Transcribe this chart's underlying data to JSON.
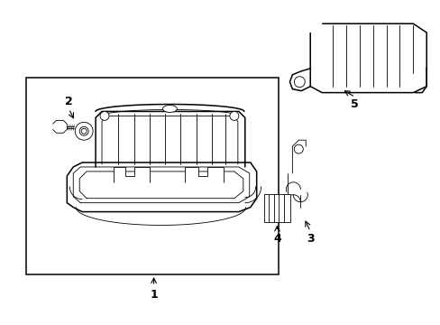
{
  "background_color": "#ffffff",
  "line_color": "#000000",
  "fig_width": 4.89,
  "fig_height": 3.6,
  "dpi": 100,
  "lw_main": 1.1,
  "lw_thin": 0.6,
  "lw_detail": 0.5
}
